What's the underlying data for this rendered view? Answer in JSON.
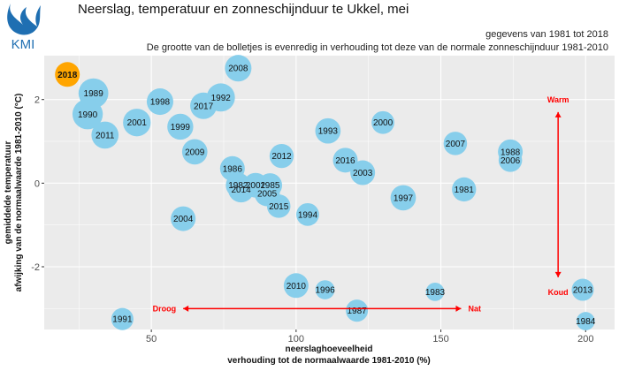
{
  "header": {
    "logo_text": "KMI",
    "title": "Neerslag, temperatuur en zonneschijnduur te Ukkel, mei",
    "subtitle1": "gegevens van 1981 tot 2018",
    "subtitle2": "De grootte van de bolletjes is evenredig in verhouding tot deze van de normale zonneschijnduur 1981-2010"
  },
  "colors": {
    "bubble": "#87ceeb",
    "highlight": "#ffa500",
    "annotation": "#ff0000",
    "panel": "#ebebeb",
    "grid": "#ffffff"
  },
  "chart_data": {
    "type": "scatter",
    "xlabel": [
      "neerslaghoeveelheid",
      "verhouding tot de normaalwaarde 1981-2010 (%)"
    ],
    "ylabel": [
      "gemiddelde temperatuur",
      "afwijking van de normaalwaarde 1981-2010 (°C)"
    ],
    "xlim": [
      13,
      210
    ],
    "ylim": [
      -3.5,
      3.05
    ],
    "x_ticks": [
      50,
      100,
      150,
      200
    ],
    "y_ticks": [
      -2,
      0,
      2
    ],
    "grid": true,
    "highlight": "2018",
    "annotations": {
      "warm": "Warm",
      "koud": "Koud",
      "droog": "Droog",
      "nat": "Nat",
      "horizontal_arrow": {
        "x1": 61,
        "x2": 157,
        "y": -3.0
      },
      "vertical_arrow": {
        "x": 190.5,
        "y1": 1.7,
        "y2": -2.25
      }
    },
    "points": [
      {
        "year": "2018",
        "x": 21,
        "y": 2.6,
        "size": 1.0
      },
      {
        "year": "2008",
        "x": 80,
        "y": 2.75,
        "size": 1.15
      },
      {
        "year": "1989",
        "x": 30,
        "y": 2.15,
        "size": 1.45
      },
      {
        "year": "1990",
        "x": 28,
        "y": 1.65,
        "size": 1.5
      },
      {
        "year": "2011",
        "x": 34,
        "y": 1.15,
        "size": 1.2
      },
      {
        "year": "2001",
        "x": 45,
        "y": 1.45,
        "size": 1.25
      },
      {
        "year": "1998",
        "x": 53,
        "y": 1.95,
        "size": 1.15
      },
      {
        "year": "1992",
        "x": 74,
        "y": 2.05,
        "size": 1.3
      },
      {
        "year": "2017",
        "x": 68,
        "y": 1.85,
        "size": 1.15
      },
      {
        "year": "1999",
        "x": 60,
        "y": 1.35,
        "size": 1.1
      },
      {
        "year": "2009",
        "x": 65,
        "y": 0.75,
        "size": 1.05
      },
      {
        "year": "2012",
        "x": 95,
        "y": 0.65,
        "size": 0.95
      },
      {
        "year": "1993",
        "x": 111,
        "y": 1.25,
        "size": 1.05
      },
      {
        "year": "2000",
        "x": 130,
        "y": 1.45,
        "size": 0.85
      },
      {
        "year": "2007",
        "x": 155,
        "y": 0.95,
        "size": 0.9
      },
      {
        "year": "1988",
        "x": 174,
        "y": 0.75,
        "size": 1.0
      },
      {
        "year": "2006",
        "x": 174,
        "y": 0.55,
        "size": 0.9
      },
      {
        "year": "1986",
        "x": 78,
        "y": 0.35,
        "size": 1.0
      },
      {
        "year": "2016",
        "x": 117,
        "y": 0.55,
        "size": 1.0
      },
      {
        "year": "2003",
        "x": 123,
        "y": 0.25,
        "size": 1.0
      },
      {
        "year": "1982",
        "x": 80,
        "y": -0.05,
        "size": 1.0
      },
      {
        "year": "2014",
        "x": 81,
        "y": -0.15,
        "size": 1.1
      },
      {
        "year": "2002",
        "x": 86,
        "y": -0.05,
        "size": 1.0
      },
      {
        "year": "1985",
        "x": 91,
        "y": -0.05,
        "size": 0.95
      },
      {
        "year": "2005",
        "x": 90,
        "y": -0.25,
        "size": 1.05
      },
      {
        "year": "2015",
        "x": 94,
        "y": -0.55,
        "size": 0.9
      },
      {
        "year": "1997",
        "x": 137,
        "y": -0.35,
        "size": 1.05
      },
      {
        "year": "1981",
        "x": 158,
        "y": -0.15,
        "size": 0.95
      },
      {
        "year": "1994",
        "x": 104,
        "y": -0.75,
        "size": 0.85
      },
      {
        "year": "2004",
        "x": 61,
        "y": -0.85,
        "size": 1.0
      },
      {
        "year": "2010",
        "x": 100,
        "y": -2.45,
        "size": 1.0
      },
      {
        "year": "1996",
        "x": 110,
        "y": -2.55,
        "size": 0.6
      },
      {
        "year": "1983",
        "x": 148,
        "y": -2.6,
        "size": 0.55
      },
      {
        "year": "2013",
        "x": 199,
        "y": -2.55,
        "size": 0.8
      },
      {
        "year": "1987",
        "x": 121,
        "y": -3.05,
        "size": 0.8
      },
      {
        "year": "1991",
        "x": 40,
        "y": -3.25,
        "size": 0.8
      },
      {
        "year": "1984",
        "x": 200,
        "y": -3.3,
        "size": 0.55
      }
    ]
  }
}
